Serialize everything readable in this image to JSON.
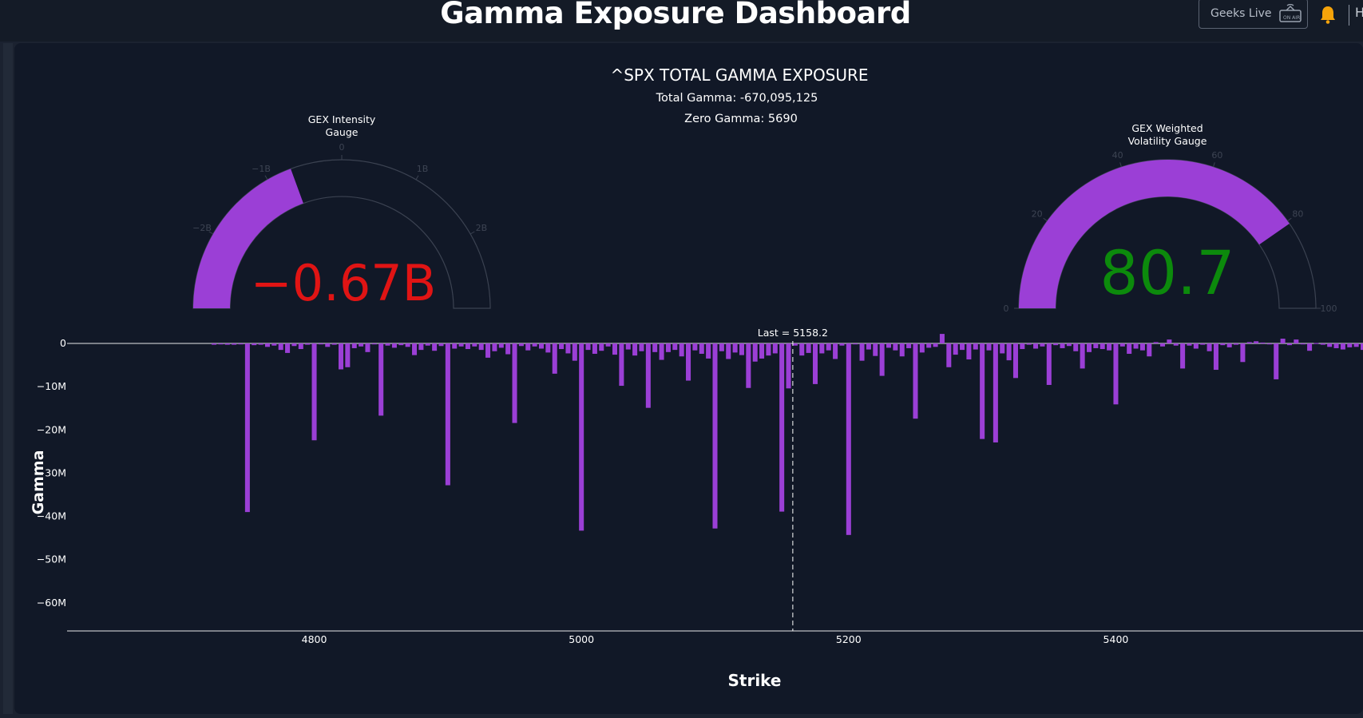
{
  "header": {
    "title": "Gamma Exposure Dashboard",
    "live_button_label": "Geeks Live",
    "truncated_label": "H"
  },
  "icons": {
    "live": "tv-live-icon",
    "notifications": "bell-icon"
  },
  "colors": {
    "accent_purple": "#9b3fd6",
    "negative_red": "#e01414",
    "positive_green": "#0c8a0c",
    "bell_orange": "#f5a30a",
    "panel_bg": "#111827"
  },
  "chart_data": [
    {
      "type": "gauge",
      "title_lines": [
        "GEX Intensity",
        "Gauge"
      ],
      "value": -0.67,
      "value_text": "−0.67B",
      "range": [
        -3,
        3
      ],
      "ticks": [
        "−2B",
        "−1B",
        "0",
        "1B",
        "2B"
      ],
      "tick_values": [
        -2,
        -1,
        0,
        1,
        2
      ],
      "value_color": "#e01414"
    },
    {
      "type": "gauge",
      "title_lines": [
        "GEX Weighted",
        "Volatility Gauge"
      ],
      "value": 80.7,
      "value_text": "80.7",
      "range": [
        0,
        100
      ],
      "ticks": [
        "0",
        "20",
        "40",
        "60",
        "80",
        "100"
      ],
      "tick_values": [
        0,
        20,
        40,
        60,
        80,
        100
      ],
      "value_color": "#0c8a0c"
    },
    {
      "type": "bar",
      "title": "^SPX TOTAL GAMMA EXPOSURE",
      "subtitle_lines": [
        "Total Gamma: -670,095,125",
        "Zero Gamma: 5690"
      ],
      "xlabel": "Strike",
      "ylabel": "Gamma",
      "x_ticks": [
        4800,
        5000,
        5200,
        5400
      ],
      "y_ticks": [
        0,
        -10,
        -20,
        -30,
        -40,
        -50,
        -60
      ],
      "y_tick_labels": [
        "0",
        "−10M",
        "−20M",
        "−30M",
        "−40M",
        "−50M",
        "−60M"
      ],
      "xlim": [
        4615,
        5585
      ],
      "ylim": [
        -66.5,
        0
      ],
      "vline": {
        "x": 5158.2,
        "label": "Last = 5158.2"
      },
      "bar_width_strike": 3.6,
      "units": "M",
      "x": [
        4725,
        4730,
        4735,
        4740,
        4745,
        4750,
        4755,
        4760,
        4765,
        4770,
        4775,
        4780,
        4785,
        4790,
        4795,
        4800,
        4805,
        4810,
        4815,
        4820,
        4825,
        4830,
        4835,
        4840,
        4845,
        4850,
        4855,
        4860,
        4865,
        4870,
        4875,
        4880,
        4885,
        4890,
        4895,
        4900,
        4905,
        4910,
        4915,
        4920,
        4925,
        4930,
        4935,
        4940,
        4945,
        4950,
        4955,
        4960,
        4965,
        4970,
        4975,
        4980,
        4985,
        4990,
        4995,
        5000,
        5005,
        5010,
        5015,
        5020,
        5025,
        5030,
        5035,
        5040,
        5045,
        5050,
        5055,
        5060,
        5065,
        5070,
        5075,
        5080,
        5085,
        5090,
        5095,
        5100,
        5105,
        5110,
        5115,
        5120,
        5125,
        5130,
        5135,
        5140,
        5145,
        5150,
        5155,
        5160,
        5165,
        5170,
        5175,
        5180,
        5185,
        5190,
        5195,
        5200,
        5205,
        5210,
        5215,
        5220,
        5225,
        5230,
        5235,
        5240,
        5245,
        5250,
        5255,
        5260,
        5265,
        5270,
        5275,
        5280,
        5285,
        5290,
        5295,
        5300,
        5305,
        5310,
        5315,
        5320,
        5325,
        5330,
        5335,
        5340,
        5345,
        5350,
        5355,
        5360,
        5365,
        5370,
        5375,
        5380,
        5385,
        5390,
        5395,
        5400,
        5405,
        5410,
        5415,
        5420,
        5425,
        5430,
        5435,
        5440,
        5445,
        5450,
        5455,
        5460,
        5465,
        5470,
        5475,
        5480,
        5485,
        5490,
        5495,
        5500,
        5505,
        5510,
        5515,
        5520,
        5525,
        5530,
        5535,
        5540,
        5545,
        5550,
        5555,
        5560,
        5565,
        5570,
        5575,
        5580,
        5585
      ],
      "values": [
        -0.3,
        -0.2,
        -0.3,
        -0.3,
        -0.2,
        -39,
        -0.4,
        -0.3,
        -0.8,
        -0.5,
        -1.5,
        -2.2,
        -0.6,
        -1.3,
        -0.3,
        -22.4,
        -0.2,
        -0.8,
        -0.3,
        -6,
        -5.5,
        -1.1,
        -0.7,
        -2,
        -0.2,
        -16.7,
        -0.5,
        -1.0,
        -0.4,
        -0.8,
        -2.7,
        -1.5,
        -0.5,
        -1.7,
        -0.6,
        -32.8,
        -1.2,
        -0.7,
        -1.3,
        -0.7,
        -1.5,
        -3.3,
        -1.8,
        -1.0,
        -2.5,
        -18.4,
        -0.6,
        -1.6,
        -0.7,
        -1.2,
        -2.1,
        -7,
        -1.3,
        -2.3,
        -4,
        -43.3,
        -1.5,
        -2.4,
        -1.7,
        -0.7,
        -2.6,
        -9.8,
        -1.4,
        -2.8,
        -1.8,
        -14.9,
        -2.0,
        -3.8,
        -2.0,
        -1.5,
        -3.0,
        -8.6,
        -1.6,
        -2.4,
        -3.5,
        -42.8,
        -1.8,
        -3.6,
        -2.1,
        -2.7,
        -10.3,
        -4.2,
        -3.5,
        -2.8,
        -2.3,
        -38.9,
        -10.4,
        -0.5,
        -2.8,
        -2.2,
        -9.4,
        -2.3,
        -1.6,
        -3.6,
        -0.5,
        -44.3,
        -0.2,
        -4.0,
        -1.4,
        -2.9,
        -7.5,
        -1.0,
        -1.6,
        -3.0,
        -1.1,
        -17.4,
        -2.1,
        -1.0,
        -0.8,
        2.2,
        -5.5,
        -2.6,
        -1.5,
        -3.7,
        -1.4,
        -22.1,
        -1.6,
        -22.9,
        -2.3,
        -3.9,
        -8.0,
        -1.3,
        -0.3,
        -1.2,
        -0.7,
        -9.6,
        -0.4,
        -1.1,
        -0.6,
        -1.8,
        -5.8,
        -2.0,
        -1.1,
        -1.3,
        -1.6,
        -14.1,
        -0.7,
        -2.4,
        -1.2,
        -1.6,
        -3.0,
        0.3,
        -0.7,
        0.9,
        -0.5,
        -5.8,
        -0.5,
        -1.2,
        -0.3,
        -1.8,
        -6.1,
        -0.4,
        -0.9,
        -0.3,
        -4.3,
        0.3,
        0.5,
        0.2,
        -0.2,
        -8.3,
        1.1,
        -0.4,
        0.9,
        -0.2,
        -1.7,
        0.1,
        -0.3,
        -0.8,
        -1.1,
        -1.4,
        -0.9,
        -0.8,
        -1.5
      ]
    }
  ]
}
